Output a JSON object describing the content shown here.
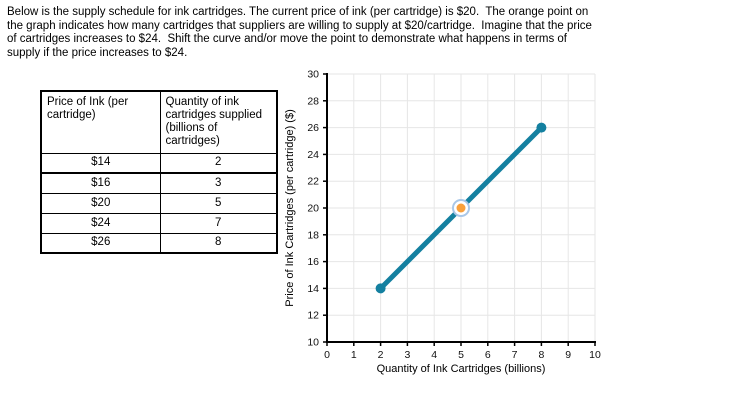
{
  "instructions": {
    "lines": [
      "Below is the supply schedule for ink cartridges. The current price of ink (per cartridge) is $20.  The orange point on",
      "the graph indicates how many cartridges that suppliers are willing to supply at $20/cartridge.  Imagine that the price",
      "of cartridges increases to $24.  Shift the curve and/or move the point to demonstrate what happens in terms of",
      "supply if the price increases to $24."
    ]
  },
  "table": {
    "headers": [
      "Price of Ink (per cartridge)",
      "Quantity of ink cartridges supplied (billions of cartridges)"
    ],
    "rows": [
      [
        "$14",
        "2"
      ],
      [
        "$16",
        "3"
      ],
      [
        "$20",
        "5"
      ],
      [
        "$24",
        "7"
      ],
      [
        "$26",
        "8"
      ]
    ]
  },
  "chart_data": {
    "type": "line",
    "title": "",
    "xlabel": "Quantity of Ink Cartridges (billions)",
    "ylabel": "Price of Ink Cartridges (per cartridge) ($)",
    "xlim": [
      0,
      10
    ],
    "ylim": [
      10,
      30
    ],
    "xticks": [
      0,
      1,
      2,
      3,
      4,
      5,
      6,
      7,
      8,
      9,
      10
    ],
    "yticks": [
      10,
      12,
      14,
      16,
      18,
      20,
      22,
      24,
      26,
      28,
      30
    ],
    "grid": true,
    "legend": "none",
    "series": [
      {
        "name": "supply-curve",
        "points": [
          [
            2,
            14
          ],
          [
            8,
            26
          ]
        ],
        "color": "#1480A0",
        "endpoint_dots": true
      }
    ],
    "highlight_point": {
      "x": 5,
      "y": 20,
      "fill": "#F9A03C",
      "ring": "#A9C7E8",
      "meaning": "quantity supplied at current price $20"
    },
    "colors": {
      "grid": "#E6E6E6",
      "axis": "#000000",
      "tick_text": "#111111"
    }
  }
}
